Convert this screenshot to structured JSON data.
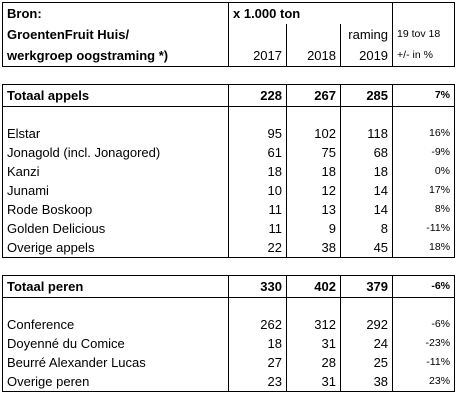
{
  "header": {
    "source_label": "Bron:",
    "source_line1": "GroentenFruit Huis/",
    "source_line2": "werkgroep oogstraming *)",
    "unit": "x 1.000 ton",
    "raming": "raming",
    "pct_line1": "19 tov 18",
    "pct_line2": "+/- in %",
    "years": [
      "2017",
      "2018",
      "2019"
    ]
  },
  "apples": {
    "total": {
      "label": "Totaal appels",
      "v2017": "228",
      "v2018": "267",
      "v2019": "285",
      "pct": "7%"
    },
    "rows": [
      {
        "label": "Elstar",
        "v2017": "95",
        "v2018": "102",
        "v2019": "118",
        "pct": "16%"
      },
      {
        "label": "Jonagold (incl. Jonagored)",
        "v2017": "61",
        "v2018": "75",
        "v2019": "68",
        "pct": "-9%"
      },
      {
        "label": "Kanzi",
        "v2017": "18",
        "v2018": "18",
        "v2019": "18",
        "pct": "0%"
      },
      {
        "label": "Junami",
        "v2017": "10",
        "v2018": "12",
        "v2019": "14",
        "pct": "17%"
      },
      {
        "label": "Rode Boskoop",
        "v2017": "11",
        "v2018": "13",
        "v2019": "14",
        "pct": "8%"
      },
      {
        "label": "Golden Delicious",
        "v2017": "11",
        "v2018": "9",
        "v2019": "8",
        "pct": "-11%"
      },
      {
        "label": "Overige appels",
        "v2017": "22",
        "v2018": "38",
        "v2019": "45",
        "pct": "18%"
      }
    ]
  },
  "pears": {
    "total": {
      "label": "Totaal peren",
      "v2017": "330",
      "v2018": "402",
      "v2019": "379",
      "pct": "-6%"
    },
    "rows": [
      {
        "label": "Conference",
        "v2017": "262",
        "v2018": "312",
        "v2019": "292",
        "pct": "-6%"
      },
      {
        "label": "Doyenné du Comice",
        "v2017": "18",
        "v2018": "31",
        "v2019": "24",
        "pct": "-23%"
      },
      {
        "label": "Beurré Alexander Lucas",
        "v2017": "27",
        "v2018": "28",
        "v2019": "25",
        "pct": "-11%"
      },
      {
        "label": "Overige peren",
        "v2017": "23",
        "v2018": "31",
        "v2019": "38",
        "pct": "23%"
      }
    ]
  }
}
